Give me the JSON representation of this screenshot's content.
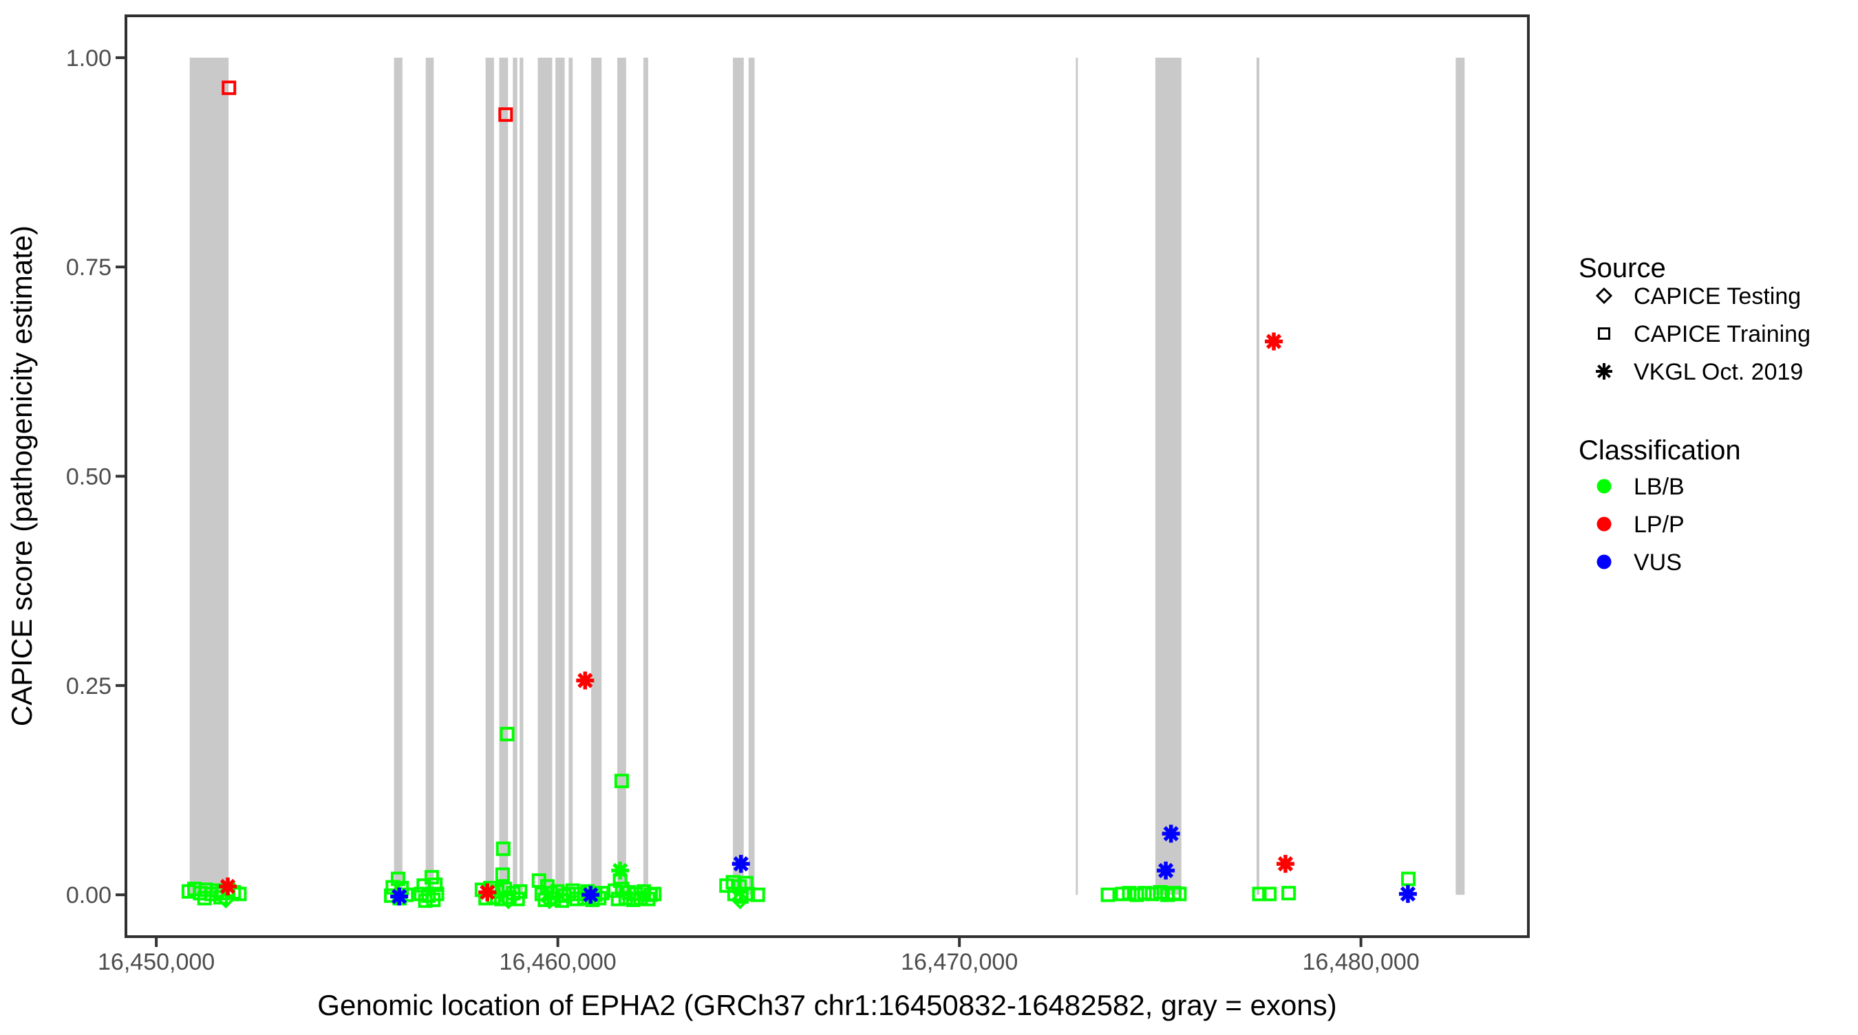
{
  "figure": {
    "x_axis_title": "Genomic location of EPHA2 (GRCh37 chr1:16450832-16482582, gray = exons)",
    "y_axis_title": "CAPICE score (pathogenicity estimate)"
  },
  "legend": {
    "source_title": "Source",
    "source_items": [
      {
        "label": "CAPICE Testing",
        "shape": "diamond"
      },
      {
        "label": "CAPICE Training",
        "shape": "square"
      },
      {
        "label": "VKGL Oct. 2019",
        "shape": "asterisk"
      }
    ],
    "classification_title": "Classification",
    "classification_items": [
      {
        "label": "LB/B",
        "color": "#00FF00"
      },
      {
        "label": "LP/P",
        "color": "#FF0000"
      },
      {
        "label": "VUS",
        "color": "#0000FF"
      }
    ]
  },
  "chart_data": {
    "type": "scatter",
    "title": "",
    "xlabel": "Genomic location of EPHA2 (GRCh37 chr1:16450832-16482582, gray = exons)",
    "ylabel": "CAPICE score (pathogenicity estimate)",
    "x_domain": [
      16449244,
      16484170
    ],
    "y_domain": [
      -0.05,
      1.05
    ],
    "grid": false,
    "legend_position": "right",
    "x_ticks": [
      {
        "value": 16450000,
        "label": "16,450,000"
      },
      {
        "value": 16460000,
        "label": "16,460,000"
      },
      {
        "value": 16470000,
        "label": "16,470,000"
      },
      {
        "value": 16480000,
        "label": "16,480,000"
      }
    ],
    "y_ticks": [
      {
        "value": 0.0,
        "label": "0.00"
      },
      {
        "value": 0.25,
        "label": "0.25"
      },
      {
        "value": 0.5,
        "label": "0.50"
      },
      {
        "value": 0.75,
        "label": "0.75"
      },
      {
        "value": 1.0,
        "label": "1.00"
      }
    ],
    "colors": {
      "LB/B": "#00FF00",
      "LP/P": "#FF0000",
      "VUS": "#0000FF",
      "exon": "#C9C9C9"
    },
    "exons": [
      [
        16450832,
        16451800
      ],
      [
        16455920,
        16456130
      ],
      [
        16456710,
        16456910
      ],
      [
        16458200,
        16458410
      ],
      [
        16458540,
        16458760
      ],
      [
        16458880,
        16458990
      ],
      [
        16459050,
        16459140
      ],
      [
        16459500,
        16459860
      ],
      [
        16459940,
        16460170
      ],
      [
        16460270,
        16460370
      ],
      [
        16460830,
        16461090
      ],
      [
        16461480,
        16461700
      ],
      [
        16462130,
        16462250
      ],
      [
        16464360,
        16464630
      ],
      [
        16464750,
        16464900
      ],
      [
        16472900,
        16472950
      ],
      [
        16474880,
        16475530
      ],
      [
        16477400,
        16477470
      ],
      [
        16482360,
        16482582
      ]
    ],
    "series": [
      {
        "name": "CAPICE Testing / LB/B",
        "source": "CAPICE Testing",
        "classification": "LB/B",
        "shape": "diamond",
        "color": "#00FF00",
        "points": [
          [
            16451730,
            -0.005
          ],
          [
            16458770,
            -0.006
          ],
          [
            16459790,
            -0.006
          ],
          [
            16464540,
            -0.006
          ]
        ]
      },
      {
        "name": "CAPICE Training / LB/B",
        "source": "CAPICE Training",
        "classification": "LB/B",
        "shape": "square",
        "color": "#00FF00",
        "points": [
          [
            16450810,
            0.004
          ],
          [
            16450950,
            0.007
          ],
          [
            16451090,
            0.002
          ],
          [
            16451230,
            0.006
          ],
          [
            16451370,
            0.001
          ],
          [
            16451510,
            0.005
          ],
          [
            16451650,
            0.002
          ],
          [
            16451790,
            0.006
          ],
          [
            16451930,
            0.003
          ],
          [
            16452070,
            0.001
          ],
          [
            16451200,
            -0.004
          ],
          [
            16451600,
            -0.003
          ],
          [
            16456020,
            0.019
          ],
          [
            16455890,
            0.009
          ],
          [
            16456110,
            0.008
          ],
          [
            16455850,
            -0.001
          ],
          [
            16456060,
            -0.004
          ],
          [
            16456230,
            0.0
          ],
          [
            16456860,
            0.021
          ],
          [
            16456660,
            0.011
          ],
          [
            16456950,
            0.012
          ],
          [
            16456590,
            0.001
          ],
          [
            16456780,
            -0.001
          ],
          [
            16456990,
            0.001
          ],
          [
            16456700,
            -0.007
          ],
          [
            16456900,
            -0.006
          ],
          [
            16458110,
            0.006
          ],
          [
            16458320,
            0.008
          ],
          [
            16458490,
            0.004
          ],
          [
            16458680,
            0.007
          ],
          [
            16458890,
            0.002
          ],
          [
            16459060,
            0.004
          ],
          [
            16458200,
            -0.004
          ],
          [
            16458400,
            -0.003
          ],
          [
            16458590,
            -0.005
          ],
          [
            16458790,
            -0.003
          ],
          [
            16459000,
            -0.005
          ],
          [
            16458625,
            0.024
          ],
          [
            16458640,
            0.055
          ],
          [
            16458740,
            0.192
          ],
          [
            16459530,
            0.017
          ],
          [
            16459740,
            0.01
          ],
          [
            16459600,
            0.001
          ],
          [
            16459820,
            0.002
          ],
          [
            16459990,
            0.004
          ],
          [
            16460160,
            -0.001
          ],
          [
            16459680,
            -0.006
          ],
          [
            16459900,
            -0.005
          ],
          [
            16460100,
            -0.007
          ],
          [
            16460270,
            0.001
          ],
          [
            16460370,
            0.005
          ],
          [
            16460560,
            0.001
          ],
          [
            16460740,
            0.004
          ],
          [
            16460930,
            0.0
          ],
          [
            16461100,
            0.002
          ],
          [
            16460470,
            -0.005
          ],
          [
            16460660,
            -0.004
          ],
          [
            16460860,
            -0.006
          ],
          [
            16461030,
            -0.004
          ],
          [
            16461420,
            0.005
          ],
          [
            16461600,
            0.007
          ],
          [
            16461770,
            0.003
          ],
          [
            16461940,
            0.001
          ],
          [
            16462140,
            0.004
          ],
          [
            16462310,
            0.0
          ],
          [
            16461500,
            -0.005
          ],
          [
            16461690,
            -0.004
          ],
          [
            16461880,
            -0.006
          ],
          [
            16462060,
            -0.004
          ],
          [
            16462250,
            -0.005
          ],
          [
            16462400,
            0.001
          ],
          [
            16461550,
            0.017
          ],
          [
            16461590,
            0.136
          ],
          [
            16464200,
            0.011
          ],
          [
            16464360,
            0.015
          ],
          [
            16464530,
            0.01
          ],
          [
            16464690,
            0.014
          ],
          [
            16464400,
            0.001
          ],
          [
            16464570,
            -0.002
          ],
          [
            16464730,
            0.001
          ],
          [
            16464980,
            0.0
          ],
          [
            16473700,
            0.0
          ],
          [
            16474060,
            0.001
          ],
          [
            16474230,
            0.002
          ],
          [
            16474420,
            0.0
          ],
          [
            16474610,
            0.002
          ],
          [
            16474800,
            0.001
          ],
          [
            16475000,
            0.003
          ],
          [
            16475180,
            0.0
          ],
          [
            16475350,
            0.002
          ],
          [
            16475480,
            0.001
          ],
          [
            16477470,
            0.001
          ],
          [
            16477720,
            0.001
          ],
          [
            16478200,
            0.002
          ],
          [
            16481180,
            0.019
          ]
        ]
      },
      {
        "name": "CAPICE Training / LP/P",
        "source": "CAPICE Training",
        "classification": "LP/P",
        "shape": "square",
        "color": "#FF0000",
        "points": [
          [
            16451810,
            0.964
          ],
          [
            16458700,
            0.932
          ]
        ]
      },
      {
        "name": "VKGL Oct. 2019 / LB/B",
        "source": "VKGL Oct. 2019",
        "classification": "LB/B",
        "shape": "asterisk",
        "color": "#00FF00",
        "points": [
          [
            16461552,
            0.029
          ]
        ]
      },
      {
        "name": "VKGL Oct. 2019 / LP/P",
        "source": "VKGL Oct. 2019",
        "classification": "LP/P",
        "shape": "asterisk",
        "color": "#FF0000",
        "points": [
          [
            16451780,
            0.01
          ],
          [
            16458245,
            0.003
          ],
          [
            16460680,
            0.256
          ],
          [
            16477830,
            0.661
          ],
          [
            16478120,
            0.037
          ]
        ]
      },
      {
        "name": "VKGL Oct. 2019 / VUS",
        "source": "VKGL Oct. 2019",
        "classification": "VUS",
        "shape": "asterisk",
        "color": "#0000FF",
        "points": [
          [
            16456050,
            -0.002
          ],
          [
            16460815,
            0.0
          ],
          [
            16464560,
            0.037
          ],
          [
            16475140,
            0.029
          ],
          [
            16475270,
            0.073
          ],
          [
            16481170,
            0.001
          ]
        ]
      }
    ]
  }
}
